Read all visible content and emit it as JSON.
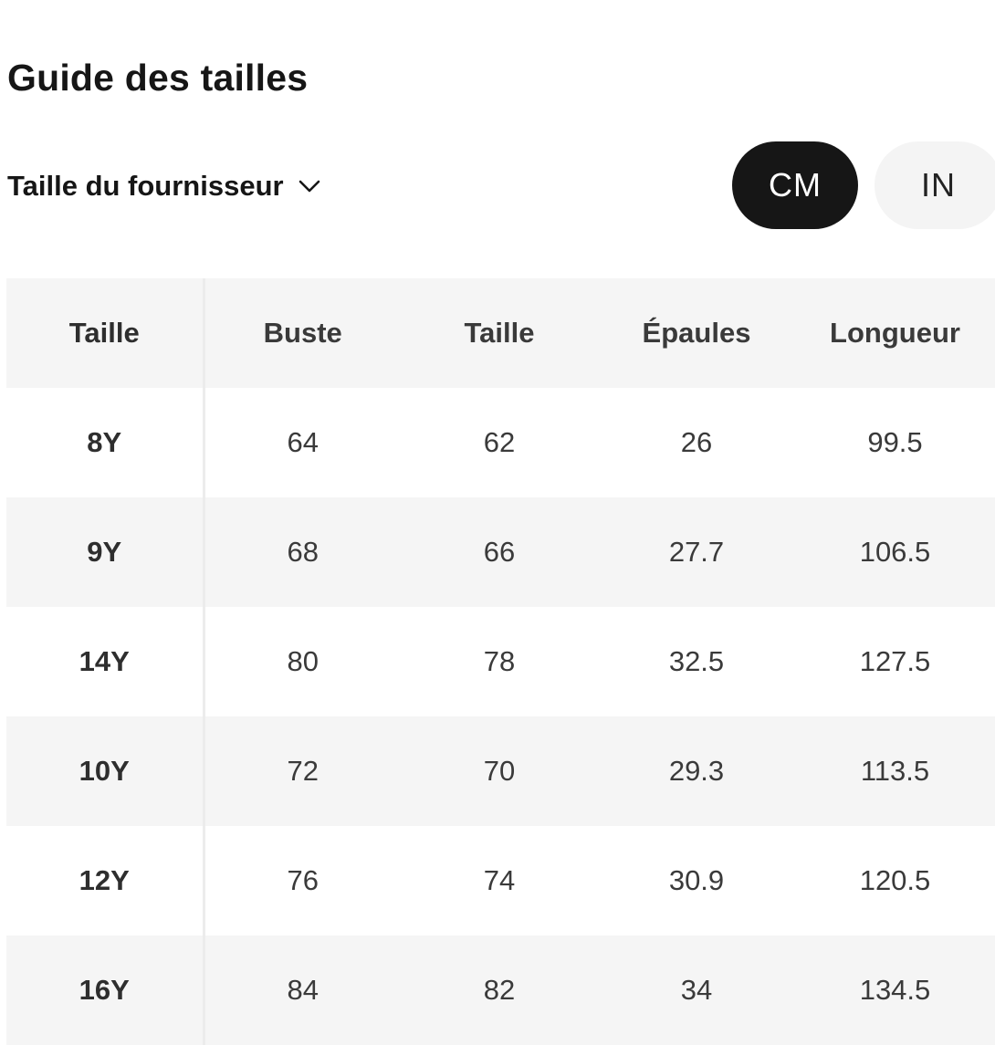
{
  "page": {
    "title": "Guide des tailles"
  },
  "size_source": {
    "label": "Taille du fournisseur",
    "icon": "chevron-down-icon"
  },
  "units": {
    "options": [
      "CM",
      "IN"
    ],
    "selected": "CM"
  },
  "colors": {
    "active_unit_bg": "#161616",
    "inactive_unit_bg": "#f4f4f4",
    "stripe_bg": "#f5f5f5"
  },
  "table": {
    "headers": [
      "Taille",
      "Buste",
      "Taille",
      "Épaules",
      "Longueur"
    ],
    "rows": [
      [
        "8Y",
        "64",
        "62",
        "26",
        "99.5"
      ],
      [
        "9Y",
        "68",
        "66",
        "27.7",
        "106.5"
      ],
      [
        "14Y",
        "80",
        "78",
        "32.5",
        "127.5"
      ],
      [
        "10Y",
        "72",
        "70",
        "29.3",
        "113.5"
      ],
      [
        "12Y",
        "76",
        "74",
        "30.9",
        "120.5"
      ],
      [
        "16Y",
        "84",
        "82",
        "34",
        "134.5"
      ]
    ]
  }
}
